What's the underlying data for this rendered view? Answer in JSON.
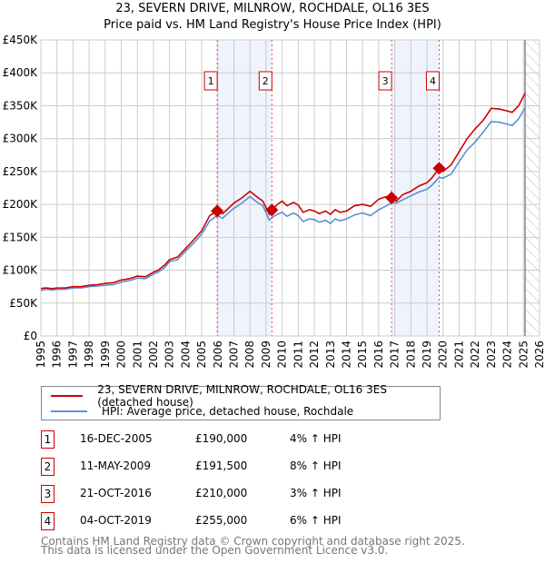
{
  "chart_data": {
    "type": "line",
    "title": "23, SEVERN DRIVE, MILNROW, ROCHDALE, OL16 3ES",
    "subtitle": "Price paid vs. HM Land Registry's House Price Index (HPI)",
    "xlim": [
      1995,
      2026
    ],
    "ylim": [
      0,
      450000
    ],
    "yticks": [
      {
        "v": 0,
        "label": "£0"
      },
      {
        "v": 50000,
        "label": "£50K"
      },
      {
        "v": 100000,
        "label": "£100K"
      },
      {
        "v": 150000,
        "label": "£150K"
      },
      {
        "v": 200000,
        "label": "£200K"
      },
      {
        "v": 250000,
        "label": "£250K"
      },
      {
        "v": 300000,
        "label": "£300K"
      },
      {
        "v": 350000,
        "label": "£350K"
      },
      {
        "v": 400000,
        "label": "£400K"
      },
      {
        "v": 450000,
        "label": "£450K"
      }
    ],
    "xticks": [
      "1995",
      "1996",
      "1997",
      "1998",
      "1999",
      "2000",
      "2001",
      "2002",
      "2003",
      "2004",
      "2005",
      "2006",
      "2007",
      "2008",
      "2009",
      "2010",
      "2011",
      "2012",
      "2013",
      "2014",
      "2015",
      "2016",
      "2017",
      "2018",
      "2019",
      "2020",
      "2021",
      "2022",
      "2023",
      "2024",
      "2025",
      "2026"
    ],
    "forecast_start": 2025.1,
    "series": [
      {
        "name": "23, SEVERN DRIVE, MILNROW, ROCHDALE, OL16 3ES (detached house)",
        "color": "#cc0000",
        "x": [
          1995,
          1995.3,
          1995.7,
          1996,
          1996.5,
          1997,
          1997.5,
          1998,
          1998.5,
          1999,
          1999.5,
          2000,
          2000.5,
          2001,
          2001.5,
          2002,
          2002.3,
          2002.7,
          2003,
          2003.5,
          2004,
          2004.5,
          2005,
          2005.5,
          2005.96,
          2006.3,
          2006.7,
          2007,
          2007.5,
          2008,
          2008.4,
          2008.8,
          2009.2,
          2009.36,
          2009.7,
          2010,
          2010.3,
          2010.7,
          2011,
          2011.3,
          2011.7,
          2012,
          2012.3,
          2012.7,
          2013,
          2013.3,
          2013.6,
          2014,
          2014.5,
          2015,
          2015.5,
          2016,
          2016.5,
          2016.8,
          2017.1,
          2017.5,
          2018,
          2018.5,
          2019,
          2019.3,
          2019.76,
          2020,
          2020.5,
          2021,
          2021.5,
          2022,
          2022.5,
          2023,
          2023.5,
          2024,
          2024.3,
          2024.7,
          2025.1
        ],
        "y": [
          72,
          73,
          72,
          73,
          73,
          75,
          75,
          77,
          78,
          80,
          81,
          85,
          87,
          91,
          90,
          97,
          100,
          108,
          116,
          120,
          133,
          146,
          160,
          183,
          190,
          186,
          195,
          202,
          210,
          220,
          212,
          205,
          185,
          191.5,
          200,
          205,
          198,
          203,
          199,
          188,
          192,
          190,
          186,
          190,
          185,
          192,
          188,
          190,
          198,
          200,
          197,
          208,
          212,
          210,
          205,
          215,
          220,
          228,
          233,
          240,
          255,
          250,
          260,
          280,
          300,
          315,
          328,
          346,
          345,
          342,
          340,
          350,
          369
        ]
      },
      {
        "name": "HPI: Average price, detached house, Rochdale",
        "color": "#5b8fd6",
        "x": [
          1995,
          1995.3,
          1995.7,
          1996,
          1996.5,
          1997,
          1997.5,
          1998,
          1998.5,
          1999,
          1999.5,
          2000,
          2000.5,
          2001,
          2001.5,
          2002,
          2002.3,
          2002.7,
          2003,
          2003.5,
          2004,
          2004.5,
          2005,
          2005.5,
          2005.96,
          2006.3,
          2006.7,
          2007,
          2007.5,
          2008,
          2008.4,
          2008.8,
          2009.2,
          2009.36,
          2009.7,
          2010,
          2010.3,
          2010.7,
          2011,
          2011.3,
          2011.7,
          2012,
          2012.3,
          2012.7,
          2013,
          2013.3,
          2013.6,
          2014,
          2014.5,
          2015,
          2015.5,
          2016,
          2016.5,
          2016.8,
          2017.1,
          2017.5,
          2018,
          2018.5,
          2019,
          2019.3,
          2019.76,
          2020,
          2020.5,
          2021,
          2021.5,
          2022,
          2022.5,
          2023,
          2023.5,
          2024,
          2024.3,
          2024.7,
          2025.1
        ],
        "y": [
          69,
          71,
          70,
          71,
          71,
          73,
          73,
          75,
          76,
          77,
          78,
          82,
          84,
          88,
          87,
          94,
          97,
          104,
          113,
          116,
          129,
          141,
          155,
          175,
          183,
          179,
          188,
          194,
          202,
          212,
          204,
          198,
          176,
          180,
          185,
          188,
          182,
          187,
          183,
          174,
          178,
          177,
          173,
          176,
          171,
          178,
          175,
          178,
          184,
          187,
          183,
          192,
          198,
          203,
          202,
          207,
          213,
          219,
          223,
          229,
          241,
          240,
          246,
          265,
          283,
          295,
          310,
          326,
          325,
          322,
          320,
          330,
          347
        ]
      }
    ],
    "sales": [
      {
        "n": "1",
        "x": 2005.96,
        "y": 190000,
        "date": "16-DEC-2005",
        "price": "£190,000",
        "hpi": "4% ↑ HPI"
      },
      {
        "n": "2",
        "x": 2009.36,
        "y": 191500,
        "date": "11-MAY-2009",
        "price": "£191,500",
        "hpi": "8% ↑ HPI"
      },
      {
        "n": "3",
        "x": 2016.8,
        "y": 210000,
        "date": "21-OCT-2016",
        "price": "£210,000",
        "hpi": "3% ↑ HPI"
      },
      {
        "n": "4",
        "x": 2019.76,
        "y": 255000,
        "date": "04-OCT-2019",
        "price": "£255,000",
        "hpi": "6% ↑ HPI"
      }
    ],
    "shaded": [
      [
        2005.96,
        2009.36
      ],
      [
        2016.8,
        2019.76
      ]
    ]
  },
  "legend": {
    "property": "23, SEVERN DRIVE, MILNROW, ROCHDALE, OL16 3ES (detached house)",
    "hpi": "HPI: Average price, detached house, Rochdale"
  },
  "footer": {
    "line1": "Contains HM Land Registry data © Crown copyright and database right 2025.",
    "line2": "This data is licensed under the Open Government Licence v3.0."
  }
}
